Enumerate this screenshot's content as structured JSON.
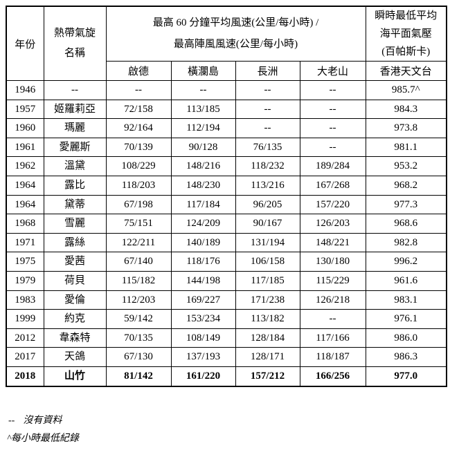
{
  "colors": {
    "text": "#000000",
    "border": "#000000",
    "background": "#ffffff"
  },
  "table": {
    "header": {
      "year": "年份",
      "cyclone_name_line1": "熱帶氣旋",
      "cyclone_name_line2": "名稱",
      "wind_line1": "最高 60 分鐘平均風速(公里/每小時) /",
      "wind_line2": "最高陣風風速(公里/每小時)",
      "pressure_line1": "瞬時最低平均",
      "pressure_line2": "海平面氣壓",
      "pressure_line3": "(百帕斯卡)",
      "stations": [
        "啟德",
        "橫瀾島",
        "長洲",
        "大老山"
      ],
      "observatory": "香港天文台"
    },
    "rows": [
      {
        "cells": [
          "1946",
          "--",
          "--",
          "--",
          "--",
          "--",
          "985.7^"
        ],
        "bold": false
      },
      {
        "cells": [
          "1957",
          "姬羅莉亞",
          "72/158",
          "113/185",
          "--",
          "--",
          "984.3"
        ],
        "bold": false
      },
      {
        "cells": [
          "1960",
          "瑪麗",
          "92/164",
          "112/194",
          "--",
          "--",
          "973.8"
        ],
        "bold": false
      },
      {
        "cells": [
          "1961",
          "愛麗斯",
          "70/139",
          "90/128",
          "76/135",
          "--",
          "981.1"
        ],
        "bold": false
      },
      {
        "cells": [
          "1962",
          "溫黛",
          "108/229",
          "148/216",
          "118/232",
          "189/284",
          "953.2"
        ],
        "bold": false
      },
      {
        "cells": [
          "1964",
          "露比",
          "118/203",
          "148/230",
          "113/216",
          "167/268",
          "968.2"
        ],
        "bold": false
      },
      {
        "cells": [
          "1964",
          "黛蒂",
          "67/198",
          "117/184",
          "96/205",
          "157/220",
          "977.3"
        ],
        "bold": false
      },
      {
        "cells": [
          "1968",
          "雪麗",
          "75/151",
          "124/209",
          "90/167",
          "126/203",
          "968.6"
        ],
        "bold": false
      },
      {
        "cells": [
          "1971",
          "露絲",
          "122/211",
          "140/189",
          "131/194",
          "148/221",
          "982.8"
        ],
        "bold": false
      },
      {
        "cells": [
          "1975",
          "愛茜",
          "67/140",
          "118/176",
          "106/158",
          "130/180",
          "996.2"
        ],
        "bold": false
      },
      {
        "cells": [
          "1979",
          "荷貝",
          "115/182",
          "144/198",
          "117/185",
          "115/229",
          "961.6"
        ],
        "bold": false
      },
      {
        "cells": [
          "1983",
          "愛倫",
          "112/203",
          "169/227",
          "171/238",
          "126/218",
          "983.1"
        ],
        "bold": false
      },
      {
        "cells": [
          "1999",
          "約克",
          "59/142",
          "153/234",
          "113/182",
          "--",
          "976.1"
        ],
        "bold": false
      },
      {
        "cells": [
          "2012",
          "韋森特",
          "70/135",
          "108/149",
          "128/184",
          "117/166",
          "986.0"
        ],
        "bold": false
      },
      {
        "cells": [
          "2017",
          "天鴿",
          "67/130",
          "137/193",
          "128/171",
          "118/187",
          "986.3"
        ],
        "bold": false
      },
      {
        "cells": [
          "2018",
          "山竹",
          "81/142",
          "161/220",
          "157/212",
          "166/256",
          "977.0"
        ],
        "bold": true
      }
    ]
  },
  "footnotes": [
    {
      "marker": "--",
      "text": "沒有資料"
    },
    {
      "marker": "^",
      "text": "每小時最低紀錄"
    }
  ]
}
